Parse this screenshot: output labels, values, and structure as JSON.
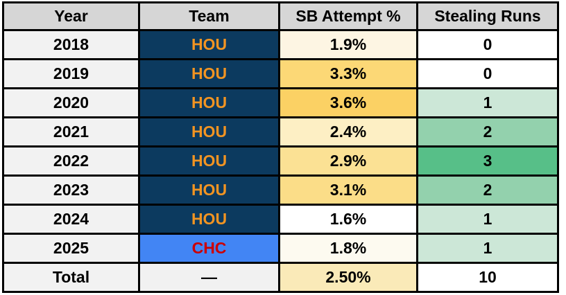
{
  "chart_data": {
    "type": "table",
    "columns": [
      "Year",
      "Team",
      "SB Attempt %",
      "Stealing Runs"
    ],
    "rows": [
      {
        "year": "2018",
        "team": "HOU",
        "sb_attempt_pct": "1.9%",
        "stealing_runs": "0"
      },
      {
        "year": "2019",
        "team": "HOU",
        "sb_attempt_pct": "3.3%",
        "stealing_runs": "0"
      },
      {
        "year": "2020",
        "team": "HOU",
        "sb_attempt_pct": "3.6%",
        "stealing_runs": "1"
      },
      {
        "year": "2021",
        "team": "HOU",
        "sb_attempt_pct": "2.4%",
        "stealing_runs": "2"
      },
      {
        "year": "2022",
        "team": "HOU",
        "sb_attempt_pct": "2.9%",
        "stealing_runs": "3"
      },
      {
        "year": "2023",
        "team": "HOU",
        "sb_attempt_pct": "3.1%",
        "stealing_runs": "2"
      },
      {
        "year": "2024",
        "team": "HOU",
        "sb_attempt_pct": "1.6%",
        "stealing_runs": "1"
      },
      {
        "year": "2025",
        "team": "CHC",
        "sb_attempt_pct": "1.8%",
        "stealing_runs": "1"
      },
      {
        "year": "Total",
        "team": "—",
        "sb_attempt_pct": "2.50%",
        "stealing_runs": "10"
      }
    ]
  },
  "styles": {
    "border_color": "#000000",
    "header_bg": "#d6d6d6",
    "header_fg": "#000000",
    "year_bg": "#f2f2f2",
    "text_color": "#000000",
    "row_styles": [
      {
        "team_bg": "#0c3a5f",
        "team_fg": "#f29422",
        "sb_bg": "#fdf5e3",
        "runs_bg": "#ffffff"
      },
      {
        "team_bg": "#0c3a5f",
        "team_fg": "#f29422",
        "sb_bg": "#fcd876",
        "runs_bg": "#ffffff"
      },
      {
        "team_bg": "#0c3a5f",
        "team_fg": "#f29422",
        "sb_bg": "#fbd164",
        "runs_bg": "#cce7d7"
      },
      {
        "team_bg": "#0c3a5f",
        "team_fg": "#f29422",
        "sb_bg": "#fdefc4",
        "runs_bg": "#93d1ad"
      },
      {
        "team_bg": "#0c3a5f",
        "team_fg": "#f29422",
        "sb_bg": "#fbe194",
        "runs_bg": "#57bf88"
      },
      {
        "team_bg": "#0c3a5f",
        "team_fg": "#f29422",
        "sb_bg": "#fbdd88",
        "runs_bg": "#93d1ad"
      },
      {
        "team_bg": "#0c3a5f",
        "team_fg": "#f29422",
        "sb_bg": "#ffffff",
        "runs_bg": "#cce7d7"
      },
      {
        "team_bg": "#4285f4",
        "team_fg": "#cc0000",
        "sb_bg": "#fdfaf0",
        "runs_bg": "#cce7d7"
      },
      {
        "team_bg": "#f1f1f1",
        "team_fg": "#000000",
        "sb_bg": "#faeab8",
        "runs_bg": "#ffffff"
      }
    ]
  }
}
